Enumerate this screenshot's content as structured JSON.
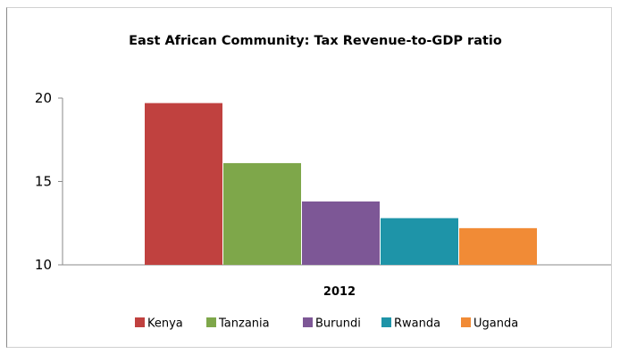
{
  "chart_data": {
    "type": "bar",
    "title": "East African Community: Tax Revenue-to-GDP ratio",
    "categories": [
      "2012"
    ],
    "series": [
      {
        "name": "Kenya",
        "values": [
          19.7
        ],
        "color": "#c0413f"
      },
      {
        "name": "Tanzania",
        "values": [
          16.1
        ],
        "color": "#7ea74a"
      },
      {
        "name": "Burundi",
        "values": [
          13.8
        ],
        "color": "#7d5796"
      },
      {
        "name": "Rwanda",
        "values": [
          12.8
        ],
        "color": "#1e94a8"
      },
      {
        "name": "Uganda",
        "values": [
          12.2
        ],
        "color": "#f18b36"
      }
    ],
    "yticks": [
      "10",
      "15",
      "20"
    ],
    "ylim": [
      10,
      20
    ],
    "grid": false,
    "legend": "bottom"
  }
}
